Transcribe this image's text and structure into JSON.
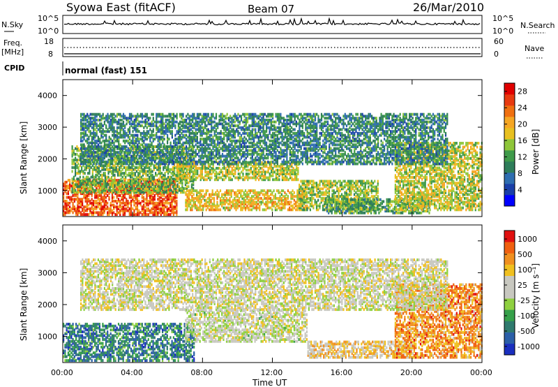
{
  "header": {
    "station": "Syowa East (fitACF)",
    "beam": "Beam 07",
    "date": "26/Mar/2010"
  },
  "panels": {
    "nsky": {
      "left_label": "N.Sky",
      "right_label": "N.Search",
      "left_ticks": [
        "10^5",
        "10^0"
      ],
      "right_ticks": [
        "10^5",
        "10^0"
      ]
    },
    "freq": {
      "left_label_1": "Freq.",
      "left_label_2": "[MHz]",
      "right_label": "Nave",
      "left_ticks": [
        "18",
        "8"
      ],
      "right_ticks": [
        "60",
        "0"
      ]
    },
    "cpid": {
      "label": "CPID",
      "value": "normal (fast) 151"
    }
  },
  "colors": {
    "power_scale": [
      "#0000ff",
      "#1a3fa8",
      "#2e6db0",
      "#2e7d5a",
      "#3f9a4a",
      "#8fc63a",
      "#e8c020",
      "#f5a623",
      "#f07010",
      "#e83a10",
      "#e00000"
    ],
    "velocity_scale": [
      "#1a2fbf",
      "#2b5fa8",
      "#2f7a6e",
      "#36a04a",
      "#8fd040",
      "#c8c8c0",
      "#c8c8c0",
      "#f0c020",
      "#f09020",
      "#f06010",
      "#e01010"
    ]
  },
  "chart_data": [
    {
      "type": "heatmap",
      "name": "power",
      "ylabel": "Slant Range [km]",
      "yticks": [
        "1000",
        "2000",
        "3000",
        "4000"
      ],
      "ylim": [
        180,
        4500
      ],
      "xticks": [
        "00:00",
        "04:00",
        "08:00",
        "12:00",
        "16:00",
        "20:00",
        "00:00"
      ],
      "colorbar": {
        "label": "Power [dB]",
        "ticks": [
          "4",
          "8",
          "12",
          "16",
          "20",
          "24",
          "28"
        ],
        "range": [
          0,
          30
        ]
      },
      "regions": [
        {
          "t0": 0,
          "t1": 6.5,
          "r0": 200,
          "r1": 1300,
          "level": 0.85
        },
        {
          "t0": 0.5,
          "t1": 7.5,
          "r0": 900,
          "r1": 2400,
          "level": 0.45
        },
        {
          "t0": 6.5,
          "t1": 13.5,
          "r0": 1300,
          "r1": 1900,
          "level": 0.55
        },
        {
          "t0": 7,
          "t1": 14,
          "r0": 350,
          "r1": 1000,
          "level": 0.62
        },
        {
          "t0": 13.5,
          "t1": 18,
          "r0": 350,
          "r1": 1300,
          "level": 0.5
        },
        {
          "t0": 15,
          "t1": 21,
          "r0": 250,
          "r1": 700,
          "level": 0.4
        },
        {
          "t0": 19,
          "t1": 24,
          "r0": 350,
          "r1": 2500,
          "level": 0.55
        },
        {
          "t0": 1,
          "t1": 22,
          "r0": 1800,
          "r1": 3400,
          "level": 0.3
        }
      ]
    },
    {
      "type": "heatmap",
      "name": "velocity",
      "ylabel": "Slant Range [km]",
      "yticks": [
        "1000",
        "2000",
        "3000",
        "4000"
      ],
      "ylim": [
        180,
        4500
      ],
      "xticks": [
        "00:00",
        "04:00",
        "08:00",
        "12:00",
        "16:00",
        "20:00",
        "00:00"
      ],
      "xlabel": "Time UT",
      "colorbar": {
        "label": "Velocity [m s⁻¹]",
        "ticks": [
          "1000",
          "500",
          "100",
          "25",
          "-25",
          "-100",
          "-500",
          "-1000"
        ],
        "range": [
          -1200,
          1200
        ]
      },
      "regions": [
        {
          "t0": 0,
          "t1": 7.5,
          "r0": 200,
          "r1": 1400,
          "level": 0.2
        },
        {
          "t0": 7,
          "t1": 14,
          "r0": 800,
          "r1": 1800,
          "level": 0.52
        },
        {
          "t0": 14,
          "t1": 20,
          "r0": 300,
          "r1": 800,
          "level": 0.65
        },
        {
          "t0": 19,
          "t1": 24,
          "r0": 300,
          "r1": 2600,
          "level": 0.8
        },
        {
          "t0": 1,
          "t1": 22,
          "r0": 1800,
          "r1": 3400,
          "level": 0.55
        }
      ]
    }
  ]
}
